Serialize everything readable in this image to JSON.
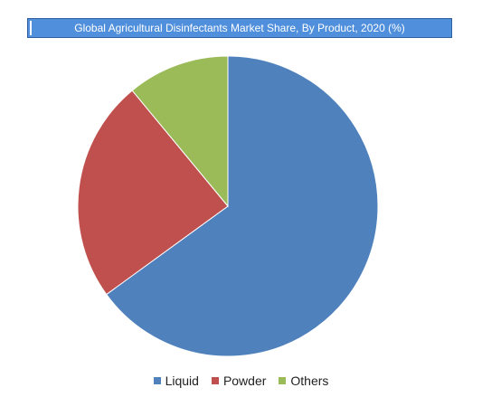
{
  "chart_data": {
    "type": "pie",
    "title": "Global Agricultural Disinfectants Market Share, By Product, 2020 (%)",
    "categories": [
      "Liquid",
      "Powder",
      "Others"
    ],
    "values": [
      65,
      24,
      11
    ],
    "colors": [
      "#4f81bd",
      "#c0504d",
      "#9bbb59"
    ],
    "legend": "bottom",
    "start_angle_deg": 0,
    "direction": "clockwise"
  }
}
